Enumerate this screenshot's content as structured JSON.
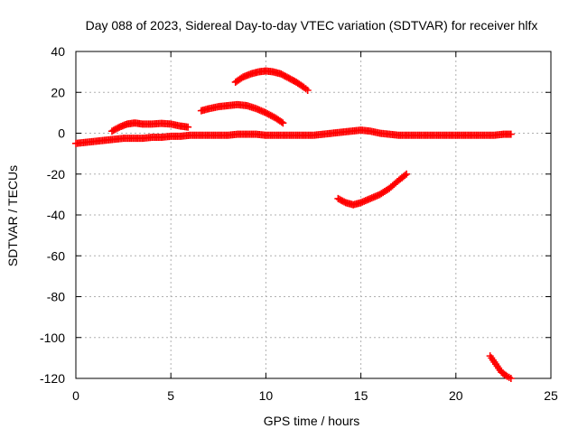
{
  "chart_data": {
    "type": "scatter",
    "title": "Day 088 of 2023, Sidereal Day-to-day VTEC variation (SDTVAR) for receiver hlfx",
    "xlabel": "GPS time / hours",
    "ylabel": "SDTVAR / TECUs",
    "xlim": [
      0,
      25
    ],
    "ylim": [
      -120,
      40
    ],
    "xticks": [
      0,
      5,
      10,
      15,
      20,
      25
    ],
    "yticks": [
      -120,
      -100,
      -80,
      -60,
      -40,
      -20,
      0,
      20,
      40
    ],
    "grid": true,
    "legend": "none",
    "marker": "+",
    "color": "#ff0000",
    "series": [
      {
        "x": [
          0,
          0.5,
          1,
          1.5,
          2,
          2.5,
          3,
          3.5,
          4,
          4.5,
          5,
          5.5,
          6,
          6.5,
          7,
          7.5,
          8,
          8.5,
          9,
          9.5,
          10,
          10.5,
          11,
          11.5,
          12,
          12.5,
          13,
          13.5,
          14,
          14.5,
          15,
          15.5,
          16,
          16.5,
          17,
          17.5,
          18,
          18.5,
          19,
          19.5,
          20,
          20.5,
          21,
          21.5,
          22,
          22.5,
          22.9
        ],
        "y": [
          -5,
          -4.5,
          -4,
          -3.5,
          -3,
          -2.5,
          -2.5,
          -2.5,
          -2,
          -2,
          -1.5,
          -1.5,
          -1,
          -1,
          -1,
          -1,
          -1,
          -0.5,
          -0.5,
          -0.5,
          -1,
          -1,
          -1,
          -1,
          -1,
          -1,
          -0.5,
          0,
          0.5,
          1,
          1.5,
          1,
          0,
          -0.5,
          -1,
          -1,
          -1,
          -1,
          -1,
          -1,
          -1,
          -1,
          -1,
          -1,
          -1,
          -0.5,
          -0.5
        ]
      },
      {
        "x": [
          1.9,
          2.3,
          2.7,
          3.1,
          3.5,
          4,
          4.5,
          5,
          5.5,
          5.9
        ],
        "y": [
          1,
          3,
          4.5,
          5,
          4.5,
          4.5,
          4.8,
          4.5,
          3.5,
          3
        ]
      },
      {
        "x": [
          6.6,
          7,
          7.5,
          8,
          8.5,
          9,
          9.5,
          10,
          10.5,
          10.9
        ],
        "y": [
          11,
          12,
          13,
          13.5,
          14,
          13.5,
          12,
          10,
          7.5,
          5
        ]
      },
      {
        "x": [
          8.4,
          8.8,
          9.2,
          9.6,
          10,
          10.4,
          10.8,
          11.2,
          11.6,
          12,
          12.2
        ],
        "y": [
          25,
          27.5,
          29,
          30,
          30.5,
          30,
          29,
          27,
          25,
          22.5,
          21
        ]
      },
      {
        "x": [
          13.8,
          14.2,
          14.6,
          15,
          15.5,
          16,
          16.5,
          17,
          17.4
        ],
        "y": [
          -32,
          -34,
          -35,
          -34,
          -32,
          -30,
          -27,
          -23,
          -20
        ]
      },
      {
        "x": [
          21.8,
          22.1,
          22.4,
          22.7,
          22.9
        ],
        "y": [
          -109,
          -113,
          -117,
          -119,
          -120
        ]
      }
    ]
  }
}
